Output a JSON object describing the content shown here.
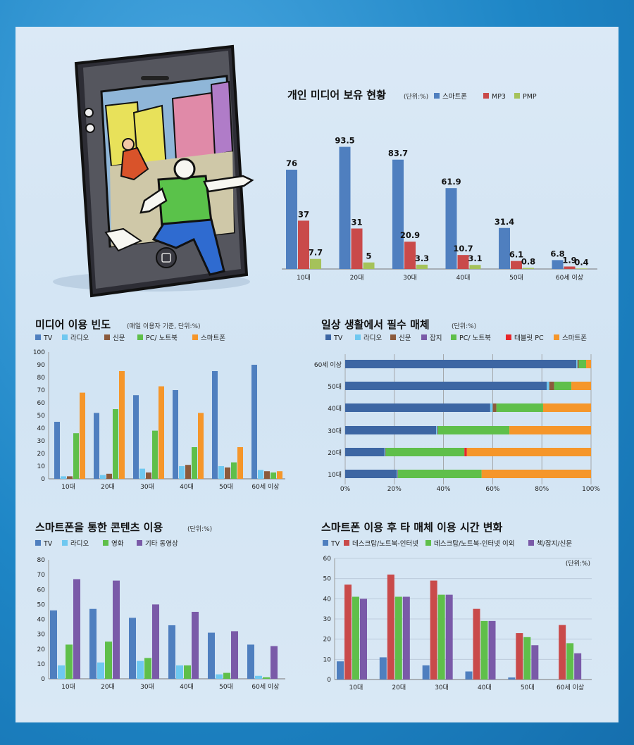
{
  "colors": {
    "blue": "#4f7fbf",
    "cyan": "#6fc8f0",
    "brown": "#8b5a3c",
    "green": "#5fbf4a",
    "orange": "#f5962a",
    "red": "#c94a4a",
    "olive": "#a5c25a",
    "purple": "#7a5aa8",
    "tred": "#e8262a",
    "navy": "#3d66a3"
  },
  "chart_data": [
    {
      "type": "bar",
      "title": "개인 미디어 보유 현황",
      "subtitle": "(단위:%)",
      "categories": [
        "10대",
        "20대",
        "30대",
        "40대",
        "50대",
        "60세 이상"
      ],
      "series": [
        {
          "name": "스마트폰",
          "values": [
            76,
            93.5,
            83.7,
            61.9,
            31.4,
            6.8
          ]
        },
        {
          "name": "MP3",
          "values": [
            37,
            31,
            20.9,
            10.7,
            6.1,
            1.9
          ]
        },
        {
          "name": "PMP",
          "values": [
            7.7,
            5,
            3.3,
            3.1,
            0.8,
            0.4
          ]
        }
      ]
    },
    {
      "type": "bar",
      "title": "미디어 이용 빈도",
      "subtitle": "(매일 이용자 기준, 단위:%)",
      "categories": [
        "10대",
        "20대",
        "30대",
        "40대",
        "50대",
        "60세 이상"
      ],
      "yticks": [
        "0",
        "10",
        "20",
        "30",
        "40",
        "50",
        "60",
        "70",
        "80",
        "90",
        "100"
      ],
      "ylim": [
        0,
        100
      ],
      "series": [
        {
          "name": "TV",
          "values": [
            45,
            52,
            66,
            70,
            85,
            90
          ]
        },
        {
          "name": "라디오",
          "values": [
            2,
            3,
            8,
            10,
            10,
            7
          ]
        },
        {
          "name": "신문",
          "values": [
            2,
            4,
            5,
            11,
            9,
            6
          ]
        },
        {
          "name": "PC/ 노트북",
          "values": [
            36,
            55,
            38,
            25,
            13,
            5
          ]
        },
        {
          "name": "스마트폰",
          "values": [
            68,
            85,
            73,
            52,
            25,
            6
          ]
        }
      ]
    },
    {
      "type": "bar",
      "orientation": "horizontal-stacked",
      "title": "일상 생활에서 필수 매체",
      "subtitle": "(단위:%)",
      "categories": [
        "60세 이상",
        "50대",
        "40대",
        "30대",
        "20대",
        "10대"
      ],
      "xticks": [
        "0%",
        "20%",
        "40%",
        "60%",
        "80%",
        "100%"
      ],
      "xlim": [
        0,
        100
      ],
      "series": [
        {
          "name": "TV",
          "values": [
            94,
            82,
            59,
            37,
            16,
            21
          ]
        },
        {
          "name": "라디오",
          "values": [
            0.5,
            1,
            1,
            0.5,
            0.3,
            0.3
          ]
        },
        {
          "name": "신문",
          "values": [
            0.5,
            2,
            1.5,
            0.3,
            0.2,
            0.2
          ]
        },
        {
          "name": "잡지",
          "values": [
            0,
            0,
            0,
            0,
            0,
            0
          ]
        },
        {
          "name": "PC/ 노트북",
          "values": [
            3,
            7,
            19,
            29,
            32,
            34
          ]
        },
        {
          "name": "태블릿 PC",
          "values": [
            0,
            0,
            0,
            0,
            1,
            0
          ]
        },
        {
          "name": "스마트폰",
          "values": [
            2,
            8,
            19.5,
            33.2,
            50.5,
            44.5
          ]
        }
      ]
    },
    {
      "type": "bar",
      "title": "스마트폰을 통한 콘텐츠 이용",
      "subtitle": "(단위:%)",
      "categories": [
        "10대",
        "20대",
        "30대",
        "40대",
        "50대",
        "60세 이상"
      ],
      "yticks": [
        "0",
        "10",
        "20",
        "30",
        "40",
        "50",
        "60",
        "70",
        "80"
      ],
      "ylim": [
        0,
        80
      ],
      "series": [
        {
          "name": "TV",
          "values": [
            46,
            47,
            41,
            36,
            31,
            23
          ]
        },
        {
          "name": "라디오",
          "values": [
            9,
            11,
            12,
            9,
            3,
            2
          ]
        },
        {
          "name": "영화",
          "values": [
            23,
            25,
            14,
            9,
            4,
            1
          ]
        },
        {
          "name": "기타 동영상",
          "values": [
            67,
            66,
            50,
            45,
            32,
            22
          ]
        }
      ]
    },
    {
      "type": "bar",
      "title": "스마트폰 이용 후 타 매체 이용 시간 변화",
      "unit": "(단위:%)",
      "categories": [
        "10대",
        "20대",
        "30대",
        "40대",
        "50대",
        "60세 이상"
      ],
      "yticks": [
        "0",
        "10",
        "20",
        "30",
        "40",
        "50",
        "60"
      ],
      "ylim": [
        0,
        60
      ],
      "series": [
        {
          "name": "TV",
          "values": [
            9,
            11,
            7,
            4,
            1,
            0
          ]
        },
        {
          "name": "데스크탑/노트북-인터넷",
          "values": [
            47,
            52,
            49,
            35,
            23,
            27
          ]
        },
        {
          "name": "데스크탑/노트북-인터넷 이외",
          "values": [
            41,
            41,
            42,
            29,
            21,
            18
          ]
        },
        {
          "name": "책/잡지/신문",
          "values": [
            40,
            41,
            42,
            29,
            17,
            13
          ]
        }
      ]
    }
  ]
}
